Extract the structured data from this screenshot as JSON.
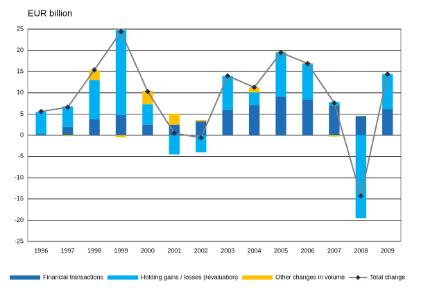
{
  "chart_data": {
    "type": "bar",
    "stacked": true,
    "y_label": "EUR billion",
    "categories": [
      "1996",
      "1997",
      "1998",
      "1999",
      "2000",
      "2001",
      "2002",
      "2003",
      "2004",
      "2005",
      "2006",
      "2007",
      "2008",
      "2009"
    ],
    "series": [
      {
        "name": "Financial transactions",
        "color": "#1f6eb5",
        "values": [
          0.3,
          2,
          3.8,
          4.8,
          2.5,
          2.5,
          3.3,
          6,
          7.1,
          9.1,
          8.4,
          7,
          4.5,
          6.2
        ]
      },
      {
        "name": "Holding gains / losses (revaluation)",
        "color": "#00b0f0",
        "values": [
          5.2,
          4.8,
          9.2,
          20,
          4.8,
          -4.5,
          -4,
          8,
          3,
          10.4,
          8.4,
          0.8,
          -19.5,
          8.2
        ]
      },
      {
        "name": "Other changes in volume",
        "color": "#ffc000",
        "values": [
          0,
          -0.2,
          2.3,
          -0.5,
          3.2,
          2.6,
          0.3,
          0,
          1.2,
          0.2,
          0.2,
          -0.3,
          0.1,
          0
        ]
      },
      {
        "name": "Total change",
        "type": "line",
        "color": "#808080",
        "marker_color": "#1f3050",
        "values": [
          5.6,
          6.6,
          15.4,
          24.4,
          10.3,
          0.5,
          -0.6,
          14,
          11.3,
          19.5,
          16.9,
          7.6,
          -14.3,
          14.4
        ]
      }
    ],
    "ylim": [
      -25,
      25
    ],
    "yticks": [
      -25,
      -20,
      -15,
      -10,
      -5,
      0,
      5,
      10,
      15,
      20,
      25
    ],
    "grid": true,
    "legend": "bottom"
  }
}
